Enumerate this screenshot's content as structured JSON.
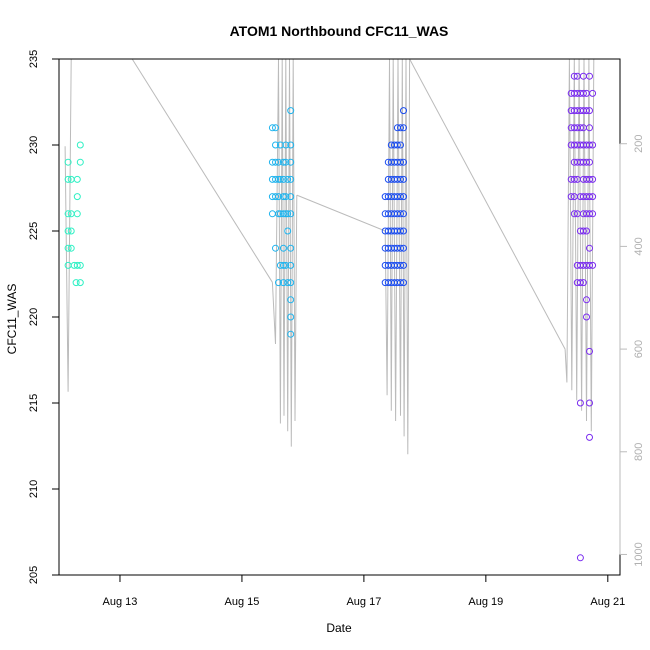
{
  "chart_data": {
    "type": "scatter",
    "title": "ATOM1 Northbound CFC11_WAS",
    "xlabel": "Date",
    "ylabel": "CFC11_WAS",
    "xlim": [
      "2016-08-12",
      "2016-08-21.2"
    ],
    "ylim": [
      205,
      235
    ],
    "x_ticks": [
      {
        "date": "2016-08-13",
        "label": "Aug 13"
      },
      {
        "date": "2016-08-15",
        "label": "Aug 15"
      },
      {
        "date": "2016-08-17",
        "label": "Aug 17"
      },
      {
        "date": "2016-08-19",
        "label": "Aug 19"
      },
      {
        "date": "2016-08-21",
        "label": "Aug 21"
      }
    ],
    "y_ticks": [
      205,
      210,
      215,
      220,
      225,
      230,
      235
    ],
    "right_axis": {
      "ticks": [
        200,
        400,
        600,
        800,
        1000
      ],
      "range": [
        35,
        1040
      ],
      "reversed": true,
      "color": "#bbbbbb"
    },
    "grid": false,
    "legend": "none",
    "series": [
      {
        "color": "#2ef0c4",
        "points": [
          [
            "2016-08-12.15",
            229
          ],
          [
            "2016-08-12.15",
            228
          ],
          [
            "2016-08-12.15",
            226
          ],
          [
            "2016-08-12.15",
            225
          ],
          [
            "2016-08-12.15",
            224
          ],
          [
            "2016-08-12.15",
            223
          ],
          [
            "2016-08-12.2",
            228
          ],
          [
            "2016-08-12.2",
            226
          ],
          [
            "2016-08-12.2",
            225
          ],
          [
            "2016-08-12.2",
            224
          ],
          [
            "2016-08-12.25",
            223
          ],
          [
            "2016-08-12.28",
            222
          ],
          [
            "2016-08-12.3",
            228
          ],
          [
            "2016-08-12.3",
            227
          ],
          [
            "2016-08-12.3",
            226
          ],
          [
            "2016-08-12.3",
            223
          ],
          [
            "2016-08-12.35",
            230
          ],
          [
            "2016-08-12.35",
            229
          ],
          [
            "2016-08-12.35",
            223
          ],
          [
            "2016-08-12.35",
            222
          ]
        ]
      },
      {
        "color": "#1fb4ee",
        "points": [
          [
            "2016-08-15.5",
            231
          ],
          [
            "2016-08-15.5",
            229
          ],
          [
            "2016-08-15.5",
            228
          ],
          [
            "2016-08-15.5",
            227
          ],
          [
            "2016-08-15.5",
            226
          ],
          [
            "2016-08-15.55",
            231
          ],
          [
            "2016-08-15.55",
            230
          ],
          [
            "2016-08-15.55",
            229
          ],
          [
            "2016-08-15.55",
            228
          ],
          [
            "2016-08-15.55",
            227
          ],
          [
            "2016-08-15.55",
            224
          ],
          [
            "2016-08-15.6",
            229
          ],
          [
            "2016-08-15.6",
            228
          ],
          [
            "2016-08-15.6",
            227
          ],
          [
            "2016-08-15.6",
            226
          ],
          [
            "2016-08-15.6",
            222
          ],
          [
            "2016-08-15.63",
            230
          ],
          [
            "2016-08-15.63",
            228
          ],
          [
            "2016-08-15.63",
            226
          ],
          [
            "2016-08-15.63",
            223
          ],
          [
            "2016-08-15.68",
            229
          ],
          [
            "2016-08-15.68",
            228
          ],
          [
            "2016-08-15.68",
            227
          ],
          [
            "2016-08-15.68",
            226
          ],
          [
            "2016-08-15.68",
            224
          ],
          [
            "2016-08-15.68",
            223
          ],
          [
            "2016-08-15.68",
            222
          ],
          [
            "2016-08-15.72",
            230
          ],
          [
            "2016-08-15.72",
            229
          ],
          [
            "2016-08-15.72",
            227
          ],
          [
            "2016-08-15.72",
            226
          ],
          [
            "2016-08-15.72",
            223
          ],
          [
            "2016-08-15.75",
            228
          ],
          [
            "2016-08-15.75",
            226
          ],
          [
            "2016-08-15.75",
            225
          ],
          [
            "2016-08-15.75",
            222
          ],
          [
            "2016-08-15.8",
            232
          ],
          [
            "2016-08-15.8",
            230
          ],
          [
            "2016-08-15.8",
            229
          ],
          [
            "2016-08-15.8",
            228
          ],
          [
            "2016-08-15.8",
            227
          ],
          [
            "2016-08-15.8",
            226
          ],
          [
            "2016-08-15.8",
            224
          ],
          [
            "2016-08-15.8",
            223
          ],
          [
            "2016-08-15.8",
            222
          ],
          [
            "2016-08-15.8",
            221
          ],
          [
            "2016-08-15.8",
            220
          ],
          [
            "2016-08-15.8",
            219
          ]
        ]
      },
      {
        "color": "#1a4cf0",
        "points": [
          [
            "2016-08-17.35",
            227
          ],
          [
            "2016-08-17.35",
            226
          ],
          [
            "2016-08-17.35",
            225
          ],
          [
            "2016-08-17.35",
            224
          ],
          [
            "2016-08-17.35",
            223
          ],
          [
            "2016-08-17.35",
            222
          ],
          [
            "2016-08-17.4",
            229
          ],
          [
            "2016-08-17.4",
            228
          ],
          [
            "2016-08-17.4",
            227
          ],
          [
            "2016-08-17.4",
            226
          ],
          [
            "2016-08-17.4",
            225
          ],
          [
            "2016-08-17.4",
            224
          ],
          [
            "2016-08-17.4",
            223
          ],
          [
            "2016-08-17.4",
            222
          ],
          [
            "2016-08-17.45",
            230
          ],
          [
            "2016-08-17.45",
            229
          ],
          [
            "2016-08-17.45",
            228
          ],
          [
            "2016-08-17.45",
            227
          ],
          [
            "2016-08-17.45",
            226
          ],
          [
            "2016-08-17.45",
            225
          ],
          [
            "2016-08-17.45",
            224
          ],
          [
            "2016-08-17.45",
            223
          ],
          [
            "2016-08-17.45",
            222
          ],
          [
            "2016-08-17.5",
            230
          ],
          [
            "2016-08-17.5",
            229
          ],
          [
            "2016-08-17.5",
            228
          ],
          [
            "2016-08-17.5",
            227
          ],
          [
            "2016-08-17.5",
            226
          ],
          [
            "2016-08-17.5",
            225
          ],
          [
            "2016-08-17.5",
            224
          ],
          [
            "2016-08-17.5",
            223
          ],
          [
            "2016-08-17.5",
            222
          ],
          [
            "2016-08-17.55",
            231
          ],
          [
            "2016-08-17.55",
            230
          ],
          [
            "2016-08-17.55",
            229
          ],
          [
            "2016-08-17.55",
            228
          ],
          [
            "2016-08-17.55",
            227
          ],
          [
            "2016-08-17.55",
            226
          ],
          [
            "2016-08-17.55",
            225
          ],
          [
            "2016-08-17.55",
            224
          ],
          [
            "2016-08-17.55",
            223
          ],
          [
            "2016-08-17.55",
            222
          ],
          [
            "2016-08-17.6",
            231
          ],
          [
            "2016-08-17.6",
            230
          ],
          [
            "2016-08-17.6",
            229
          ],
          [
            "2016-08-17.6",
            228
          ],
          [
            "2016-08-17.6",
            227
          ],
          [
            "2016-08-17.6",
            226
          ],
          [
            "2016-08-17.6",
            225
          ],
          [
            "2016-08-17.6",
            224
          ],
          [
            "2016-08-17.6",
            223
          ],
          [
            "2016-08-17.6",
            222
          ],
          [
            "2016-08-17.65",
            232
          ],
          [
            "2016-08-17.65",
            231
          ],
          [
            "2016-08-17.65",
            229
          ],
          [
            "2016-08-17.65",
            228
          ],
          [
            "2016-08-17.65",
            227
          ],
          [
            "2016-08-17.65",
            226
          ],
          [
            "2016-08-17.65",
            225
          ],
          [
            "2016-08-17.65",
            224
          ],
          [
            "2016-08-17.65",
            223
          ],
          [
            "2016-08-17.65",
            222
          ]
        ]
      },
      {
        "color": "#7a2cf0",
        "points": [
          [
            "2016-08-20.4",
            233
          ],
          [
            "2016-08-20.4",
            232
          ],
          [
            "2016-08-20.4",
            231
          ],
          [
            "2016-08-20.4",
            230
          ],
          [
            "2016-08-20.4",
            228
          ],
          [
            "2016-08-20.4",
            227
          ],
          [
            "2016-08-20.45",
            234
          ],
          [
            "2016-08-20.45",
            233
          ],
          [
            "2016-08-20.45",
            232
          ],
          [
            "2016-08-20.45",
            231
          ],
          [
            "2016-08-20.45",
            230
          ],
          [
            "2016-08-20.45",
            229
          ],
          [
            "2016-08-20.45",
            228
          ],
          [
            "2016-08-20.45",
            227
          ],
          [
            "2016-08-20.45",
            226
          ],
          [
            "2016-08-20.5",
            234
          ],
          [
            "2016-08-20.5",
            233
          ],
          [
            "2016-08-20.5",
            232
          ],
          [
            "2016-08-20.5",
            231
          ],
          [
            "2016-08-20.5",
            230
          ],
          [
            "2016-08-20.5",
            229
          ],
          [
            "2016-08-20.5",
            228
          ],
          [
            "2016-08-20.5",
            226
          ],
          [
            "2016-08-20.5",
            223
          ],
          [
            "2016-08-20.5",
            222
          ],
          [
            "2016-08-20.55",
            233
          ],
          [
            "2016-08-20.55",
            232
          ],
          [
            "2016-08-20.55",
            231
          ],
          [
            "2016-08-20.55",
            230
          ],
          [
            "2016-08-20.55",
            229
          ],
          [
            "2016-08-20.55",
            227
          ],
          [
            "2016-08-20.55",
            225
          ],
          [
            "2016-08-20.55",
            223
          ],
          [
            "2016-08-20.55",
            222
          ],
          [
            "2016-08-20.55",
            215
          ],
          [
            "2016-08-20.55",
            206
          ],
          [
            "2016-08-20.6",
            234
          ],
          [
            "2016-08-20.6",
            233
          ],
          [
            "2016-08-20.6",
            232
          ],
          [
            "2016-08-20.6",
            231
          ],
          [
            "2016-08-20.6",
            230
          ],
          [
            "2016-08-20.6",
            229
          ],
          [
            "2016-08-20.6",
            228
          ],
          [
            "2016-08-20.6",
            227
          ],
          [
            "2016-08-20.6",
            226
          ],
          [
            "2016-08-20.6",
            225
          ],
          [
            "2016-08-20.6",
            223
          ],
          [
            "2016-08-20.6",
            222
          ],
          [
            "2016-08-20.65",
            233
          ],
          [
            "2016-08-20.65",
            232
          ],
          [
            "2016-08-20.65",
            230
          ],
          [
            "2016-08-20.65",
            229
          ],
          [
            "2016-08-20.65",
            228
          ],
          [
            "2016-08-20.65",
            227
          ],
          [
            "2016-08-20.65",
            226
          ],
          [
            "2016-08-20.65",
            225
          ],
          [
            "2016-08-20.65",
            223
          ],
          [
            "2016-08-20.65",
            221
          ],
          [
            "2016-08-20.65",
            220
          ],
          [
            "2016-08-20.7",
            234
          ],
          [
            "2016-08-20.7",
            232
          ],
          [
            "2016-08-20.7",
            231
          ],
          [
            "2016-08-20.7",
            230
          ],
          [
            "2016-08-20.7",
            229
          ],
          [
            "2016-08-20.7",
            228
          ],
          [
            "2016-08-20.7",
            227
          ],
          [
            "2016-08-20.7",
            226
          ],
          [
            "2016-08-20.7",
            224
          ],
          [
            "2016-08-20.7",
            223
          ],
          [
            "2016-08-20.7",
            218
          ],
          [
            "2016-08-20.7",
            215
          ],
          [
            "2016-08-20.7",
            213
          ],
          [
            "2016-08-20.75",
            233
          ],
          [
            "2016-08-20.75",
            230
          ],
          [
            "2016-08-20.75",
            228
          ],
          [
            "2016-08-20.75",
            227
          ],
          [
            "2016-08-20.75",
            226
          ],
          [
            "2016-08-20.75",
            223
          ]
        ]
      }
    ],
    "altitude_trace": {
      "color": "#bbbbbb",
      "segments": [
        [
          [
            "2016-08-12.1",
            205
          ],
          [
            "2016-08-12.15",
            683
          ],
          [
            "2016-08-12.2",
            35
          ],
          [
            "2016-08-12.25",
            35
          ],
          [
            "2016-08-12.3",
            35
          ]
        ],
        [
          [
            "2016-08-12.3",
            35
          ],
          [
            "2016-08-12.35",
            35
          ],
          [
            "2016-08-12.4",
            35
          ],
          [
            "2016-08-13.2",
            35
          ]
        ],
        [
          [
            "2016-08-13.2",
            35
          ],
          [
            "2016-08-15.5",
            470
          ]
        ],
        [
          [
            "2016-08-15.5",
            470
          ],
          [
            "2016-08-15.55",
            590
          ],
          [
            "2016-08-15.6",
            35
          ],
          [
            "2016-08-15.63",
            745
          ],
          [
            "2016-08-15.66",
            35
          ],
          [
            "2016-08-15.69",
            730
          ],
          [
            "2016-08-15.72",
            35
          ],
          [
            "2016-08-15.75",
            760
          ],
          [
            "2016-08-15.78",
            35
          ],
          [
            "2016-08-15.81",
            790
          ],
          [
            "2016-08-15.84",
            35
          ],
          [
            "2016-08-15.87",
            740
          ],
          [
            "2016-08-15.9",
            300
          ]
        ],
        [
          [
            "2016-08-15.9",
            300
          ],
          [
            "2016-08-17.35",
            370
          ]
        ],
        [
          [
            "2016-08-17.35",
            370
          ],
          [
            "2016-08-17.38",
            690
          ],
          [
            "2016-08-17.42",
            35
          ],
          [
            "2016-08-17.45",
            720
          ],
          [
            "2016-08-17.48",
            35
          ],
          [
            "2016-08-17.52",
            740
          ],
          [
            "2016-08-17.56",
            35
          ],
          [
            "2016-08-17.6",
            730
          ],
          [
            "2016-08-17.63",
            35
          ],
          [
            "2016-08-17.66",
            770
          ],
          [
            "2016-08-17.69",
            35
          ],
          [
            "2016-08-17.72",
            805
          ],
          [
            "2016-08-17.75",
            35
          ]
        ],
        [
          [
            "2016-08-17.75",
            35
          ],
          [
            "2016-08-20.3",
            600
          ]
        ],
        [
          [
            "2016-08-20.3",
            600
          ],
          [
            "2016-08-20.33",
            665
          ],
          [
            "2016-08-20.37",
            35
          ],
          [
            "2016-08-20.41",
            680
          ],
          [
            "2016-08-20.45",
            35
          ],
          [
            "2016-08-20.49",
            700
          ],
          [
            "2016-08-20.53",
            35
          ],
          [
            "2016-08-20.57",
            720
          ],
          [
            "2016-08-20.61",
            35
          ],
          [
            "2016-08-20.65",
            740
          ],
          [
            "2016-08-20.69",
            35
          ],
          [
            "2016-08-20.73",
            760
          ],
          [
            "2016-08-20.77",
            35
          ]
        ]
      ]
    }
  }
}
